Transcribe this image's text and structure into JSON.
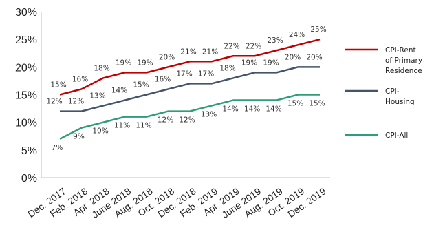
{
  "chart_data": {
    "type": "line",
    "categories": [
      "Dec. 2017",
      "Feb. 2018",
      "Apr. 2018",
      "June 2018",
      "Aug. 2018",
      "Oct. 2018",
      "Dec. 2018",
      "Feb. 2019",
      "Apr. 2019",
      "June 2019",
      "Aug. 2019",
      "Oct. 2019",
      "Dec. 2019"
    ],
    "series": [
      {
        "name": "CPI-Rent of Primary Residence",
        "legend_lines": [
          "CPI-Rent",
          "of Primary",
          "Residence"
        ],
        "color": "#c00000",
        "values": [
          15,
          16,
          18,
          19,
          19,
          20,
          21,
          21,
          22,
          22,
          23,
          24,
          25
        ],
        "labels": [
          "15%",
          "16%",
          "18%",
          "19%",
          "19%",
          "20%",
          "21%",
          "21%",
          "22%",
          "22%",
          "23%",
          "24%",
          "25%"
        ]
      },
      {
        "name": "CPI-Housing",
        "legend_lines": [
          "CPI-",
          "Housing"
        ],
        "color": "#44546a",
        "values": [
          12,
          12,
          13,
          14,
          15,
          16,
          17,
          17,
          18,
          19,
          19,
          20,
          20
        ],
        "labels": [
          "12%",
          "12%",
          "13%",
          "14%",
          "15%",
          "16%",
          "17%",
          "17%",
          "18%",
          "19%",
          "19%",
          "20%",
          "20%"
        ]
      },
      {
        "name": "CPI-All",
        "legend_lines": [
          "CPI-All"
        ],
        "color": "#2e9e78",
        "values": [
          7,
          9,
          10,
          11,
          11,
          12,
          12,
          13,
          14,
          14,
          14,
          15,
          15
        ],
        "labels": [
          "7%",
          "9%",
          "10%",
          "11%",
          "11%",
          "12%",
          "12%",
          "13%",
          "14%",
          "14%",
          "14%",
          "15%",
          "15%"
        ]
      }
    ],
    "ylim": [
      0,
      30
    ],
    "yticks": [
      "0%",
      "5%",
      "10%",
      "15%",
      "20%",
      "25%",
      "30%"
    ],
    "grid": false,
    "legend_position": "right"
  }
}
